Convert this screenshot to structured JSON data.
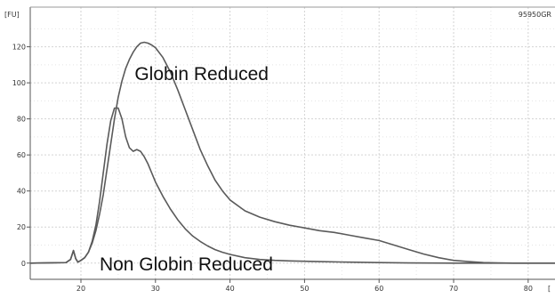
{
  "chart_data": {
    "type": "line",
    "sample_id": "95950GR",
    "y_unit_label": "[FU]",
    "x_unit_label": "[",
    "xlim": [
      13.2,
      83.6
    ],
    "ylim": [
      -9,
      142
    ],
    "x_ticks": [
      "20",
      "30",
      "40",
      "50",
      "60",
      "70",
      "80"
    ],
    "y_ticks": [
      "0",
      "20",
      "40",
      "60",
      "80",
      "100",
      "120"
    ],
    "grid": true,
    "legend": "none",
    "colors": {
      "series": "#5a5a5a",
      "grid": "#d3d3d3",
      "axis": "#555555"
    },
    "annotations": [
      {
        "text": "Globin Reduced",
        "x": 27.2,
        "y": 101.5
      },
      {
        "text": "Non Globin Reduced",
        "x": 22.5,
        "y": -4
      }
    ],
    "series": [
      {
        "name": "Globin Reduced",
        "x": [
          13.2,
          18.0,
          18.6,
          19.0,
          19.3,
          19.6,
          20.0,
          20.5,
          21.0,
          21.5,
          22.0,
          22.5,
          23.0,
          23.5,
          24.0,
          24.5,
          25.0,
          25.5,
          26.0,
          26.5,
          27.0,
          27.5,
          28.0,
          28.5,
          29.0,
          29.5,
          30.0,
          31.0,
          32.0,
          33.0,
          34.0,
          35.0,
          36.0,
          37.0,
          38.0,
          39.0,
          40.0,
          42.0,
          44.0,
          46.0,
          48.0,
          50.0,
          52.0,
          54.0,
          56.0,
          58.0,
          60.0,
          62.0,
          64.0,
          66.0,
          68.0,
          70.0,
          72.0,
          74.0,
          76.0,
          78.0,
          80.0,
          83.6
        ],
        "y": [
          0,
          0.3,
          2.0,
          7.0,
          2.5,
          0.5,
          1.5,
          3.0,
          6.0,
          11.0,
          18.0,
          27.0,
          38.0,
          52.0,
          66.0,
          80.0,
          92.0,
          101.0,
          108.0,
          113.0,
          117.0,
          120.0,
          122.0,
          122.5,
          122.0,
          121.0,
          119.5,
          114.0,
          106.0,
          96.0,
          85.0,
          74.0,
          63.0,
          54.0,
          46.0,
          40.0,
          35.0,
          29.0,
          25.5,
          23.0,
          21.0,
          19.5,
          18.0,
          17.0,
          15.5,
          14.0,
          12.5,
          10.0,
          7.5,
          5.0,
          3.0,
          1.5,
          0.8,
          0.3,
          0.1,
          0,
          0,
          0
        ]
      },
      {
        "name": "Non Globin Reduced",
        "x": [
          13.2,
          18.0,
          18.6,
          19.0,
          19.3,
          19.6,
          20.0,
          20.5,
          21.0,
          21.5,
          22.0,
          22.5,
          23.0,
          23.5,
          24.0,
          24.5,
          25.0,
          25.5,
          26.0,
          26.5,
          27.0,
          27.5,
          28.0,
          28.5,
          29.0,
          29.5,
          30.0,
          31.0,
          32.0,
          33.0,
          34.0,
          35.0,
          36.0,
          37.0,
          38.0,
          39.0,
          40.0,
          42.0,
          44.0,
          46.0,
          48.0,
          50.0,
          52.0,
          56.0,
          60.0,
          64.0,
          70.0,
          76.0,
          83.6
        ],
        "y": [
          0,
          0.3,
          2.0,
          7.0,
          2.5,
          0.5,
          1.5,
          3.0,
          6.0,
          12.0,
          21.0,
          34.0,
          50.0,
          66.0,
          79.0,
          86.0,
          86.0,
          80.0,
          70.0,
          64.0,
          62.0,
          63.0,
          62.0,
          59.0,
          55.0,
          50.0,
          45.0,
          37.0,
          30.0,
          24.0,
          19.0,
          15.0,
          12.0,
          9.5,
          7.5,
          6.0,
          4.8,
          3.0,
          2.0,
          1.5,
          1.2,
          1.0,
          0.8,
          0.5,
          0.3,
          0.1,
          0,
          0,
          0
        ]
      }
    ]
  }
}
